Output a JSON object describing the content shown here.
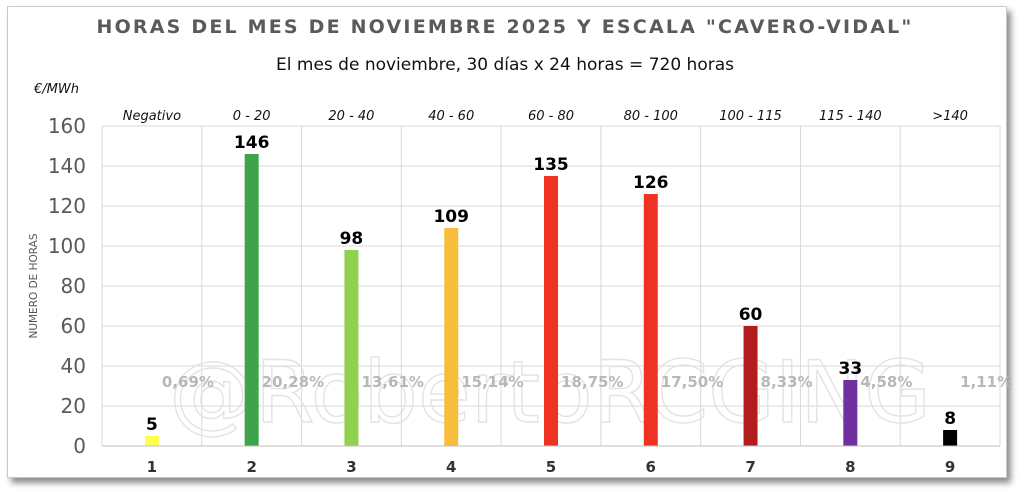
{
  "chart_data": {
    "type": "bar",
    "title": "HORAS DEL MES DE NOVIEMBRE 2025 Y ESCALA \"CAVERO-VIDAL\"",
    "subtitle": "El mes de noviembre, 30 días x 24 horas  = 720 horas",
    "unit_label": "€/MWh",
    "ylabel": "NUMERO DE HORAS",
    "categories": [
      "1",
      "2",
      "3",
      "4",
      "5",
      "6",
      "7",
      "8",
      "9"
    ],
    "ranges": [
      "Negativo",
      "0 - 20",
      "20 - 40",
      "40 - 60",
      "60 - 80",
      "80 - 100",
      "100 - 115",
      "115 - 140",
      ">140"
    ],
    "values": [
      5,
      146,
      98,
      109,
      135,
      126,
      60,
      33,
      8
    ],
    "percentages": [
      "0,69%",
      "20,28%",
      "13,61%",
      "15,14%",
      "18,75%",
      "17,50%",
      "8,33%",
      "4,58%",
      "1,11%"
    ],
    "colors": [
      "#ffff4d",
      "#3ea34a",
      "#92d050",
      "#f7bd3b",
      "#ee3322",
      "#ee3322",
      "#b11d1d",
      "#7030a0",
      "#000000"
    ],
    "ylim": [
      0,
      160
    ],
    "yticks": [
      0,
      20,
      40,
      60,
      80,
      100,
      120,
      140,
      160
    ],
    "grid": true,
    "watermark": "@RobertoRCGING"
  }
}
